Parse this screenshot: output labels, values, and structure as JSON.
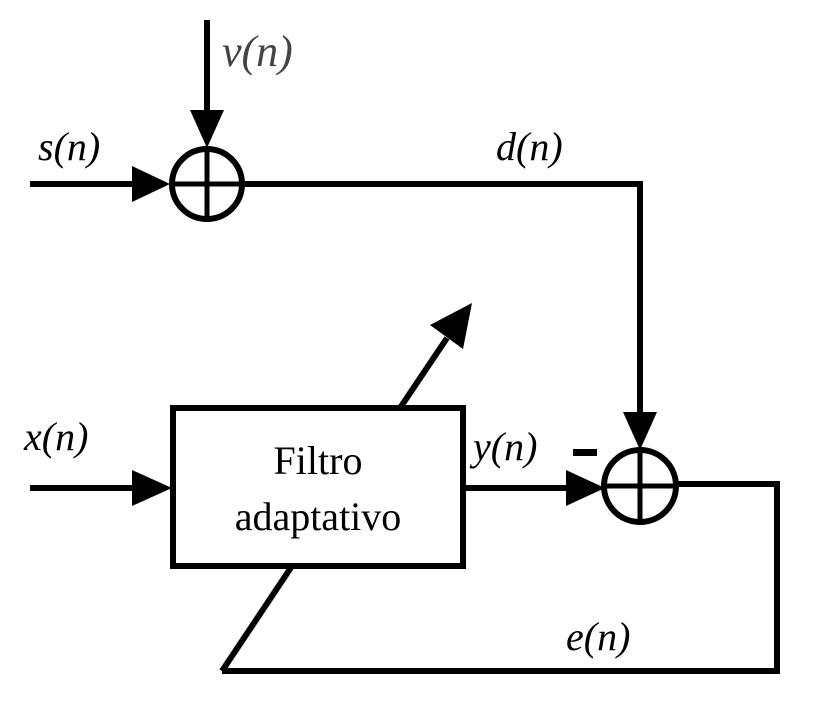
{
  "labels": {
    "v": "v(n)",
    "s": "s(n)",
    "d": "d(n)",
    "x": "x(n)",
    "y": "y(n)",
    "e": "e(n)"
  },
  "filter": {
    "line1": "Filtro",
    "line2": "adaptativo"
  },
  "colors": {
    "line": "#000000",
    "background": "#ffffff",
    "v_label": "#444444"
  }
}
